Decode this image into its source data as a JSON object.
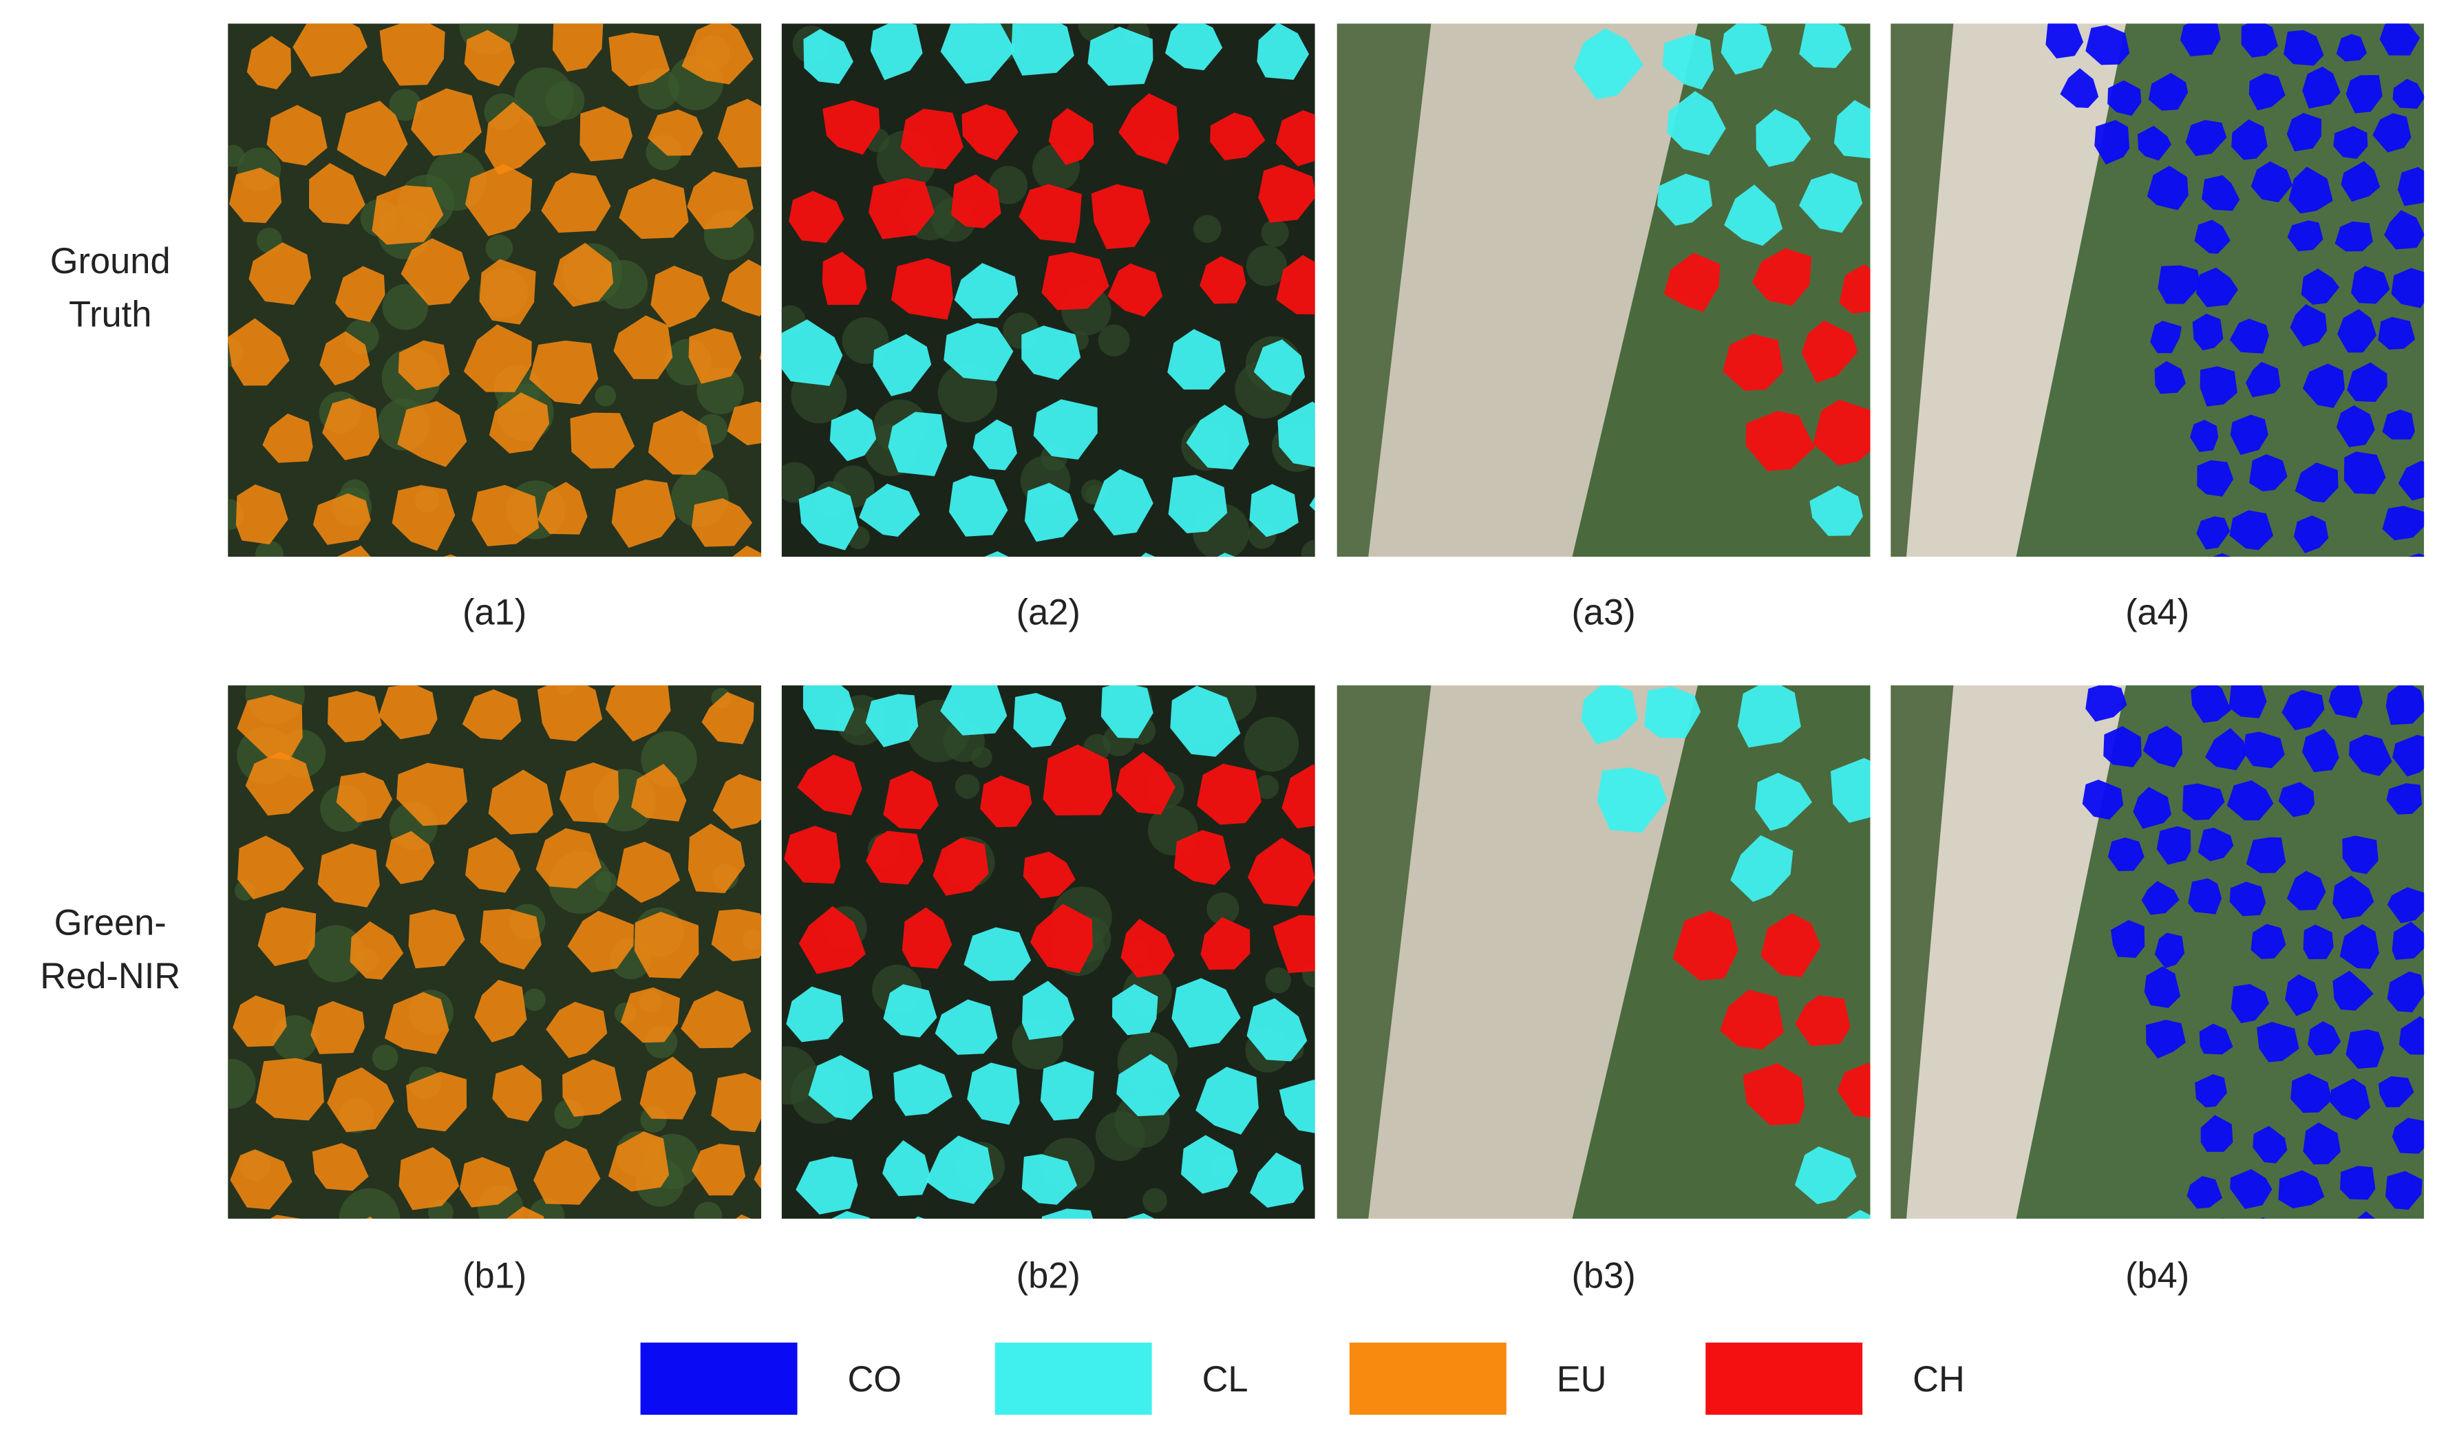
{
  "rows": [
    {
      "label": [
        "Ground",
        "Truth"
      ],
      "panels": [
        "(a1)",
        "(a2)",
        "(a3)",
        "(a4)"
      ]
    },
    {
      "label": [
        "Green-",
        "Red-NIR"
      ],
      "panels": [
        "(b1)",
        "(b2)",
        "(b3)",
        "(b4)"
      ]
    }
  ],
  "legend": [
    {
      "label": "CO",
      "color": "#0a0af5"
    },
    {
      "label": "CL",
      "color": "#3ff0ee"
    },
    {
      "label": "EU",
      "color": "#f88a10"
    },
    {
      "label": "CH",
      "color": "#f41010"
    }
  ]
}
